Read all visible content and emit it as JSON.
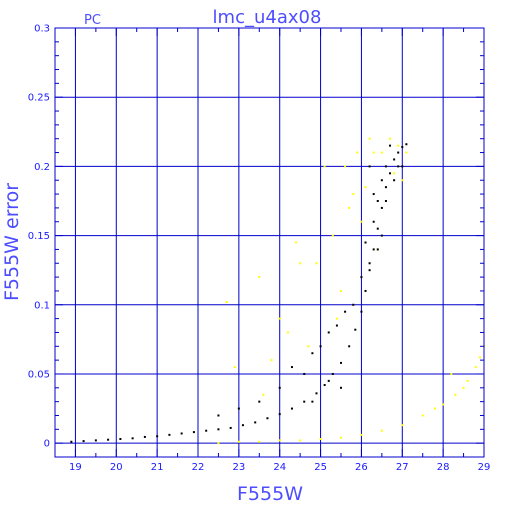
{
  "chart_data": {
    "type": "scatter",
    "title": "lmc_u4ax08",
    "tag": "PC",
    "xlabel": "F555W",
    "ylabel": "F555W error",
    "xlim": [
      18.5,
      29
    ],
    "ylim": [
      -0.01,
      0.3
    ],
    "xticks": [
      "19",
      "20",
      "21",
      "22",
      "23",
      "24",
      "25",
      "26",
      "27",
      "28",
      "29"
    ],
    "yticks": [
      "0",
      "0.05",
      "0.1",
      "0.15",
      "0.2",
      "0.25",
      "0.3"
    ],
    "grid": true,
    "colors": {
      "axes": "#0000cc",
      "text": "#4d4dff",
      "series_black": "#000000",
      "series_yellow": "#ffff00"
    },
    "series": [
      {
        "color": "#000000",
        "points": [
          [
            18.9,
            0.001
          ],
          [
            19.2,
            0.0015
          ],
          [
            19.5,
            0.002
          ],
          [
            19.8,
            0.0025
          ],
          [
            20.1,
            0.003
          ],
          [
            20.4,
            0.0035
          ],
          [
            20.7,
            0.0045
          ],
          [
            21.0,
            0.005
          ],
          [
            21.3,
            0.006
          ],
          [
            21.6,
            0.007
          ],
          [
            21.9,
            0.008
          ],
          [
            22.2,
            0.009
          ],
          [
            22.5,
            0.01
          ],
          [
            22.8,
            0.011
          ],
          [
            23.1,
            0.013
          ],
          [
            23.4,
            0.015
          ],
          [
            23.7,
            0.018
          ],
          [
            24.0,
            0.021
          ],
          [
            24.3,
            0.025
          ],
          [
            24.6,
            0.03
          ],
          [
            24.9,
            0.036
          ],
          [
            25.1,
            0.042
          ],
          [
            25.3,
            0.05
          ],
          [
            25.5,
            0.058
          ],
          [
            25.7,
            0.07
          ],
          [
            25.85,
            0.082
          ],
          [
            26.0,
            0.095
          ],
          [
            26.1,
            0.11
          ],
          [
            26.2,
            0.125
          ],
          [
            26.3,
            0.14
          ],
          [
            26.4,
            0.155
          ],
          [
            26.5,
            0.17
          ],
          [
            26.6,
            0.185
          ],
          [
            26.7,
            0.195
          ],
          [
            26.8,
            0.205
          ],
          [
            26.9,
            0.21
          ],
          [
            27.0,
            0.214
          ],
          [
            27.1,
            0.216
          ],
          [
            22.5,
            0.02
          ],
          [
            23.0,
            0.025
          ],
          [
            23.5,
            0.03
          ],
          [
            24.0,
            0.04
          ],
          [
            24.3,
            0.055
          ],
          [
            24.6,
            0.05
          ],
          [
            24.8,
            0.065
          ],
          [
            25.0,
            0.07
          ],
          [
            25.2,
            0.08
          ],
          [
            25.4,
            0.085
          ],
          [
            25.6,
            0.095
          ],
          [
            25.8,
            0.1
          ],
          [
            26.0,
            0.12
          ],
          [
            26.2,
            0.13
          ],
          [
            26.3,
            0.16
          ],
          [
            26.4,
            0.175
          ],
          [
            26.5,
            0.19
          ],
          [
            26.6,
            0.2
          ],
          [
            26.8,
            0.19
          ],
          [
            26.9,
            0.2
          ],
          [
            27.0,
            0.2
          ],
          [
            26.7,
            0.215
          ],
          [
            26.6,
            0.175
          ],
          [
            26.5,
            0.15
          ],
          [
            26.4,
            0.14
          ],
          [
            26.3,
            0.18
          ],
          [
            26.2,
            0.2
          ],
          [
            24.8,
            0.03
          ],
          [
            25.2,
            0.045
          ],
          [
            25.5,
            0.04
          ],
          [
            26.1,
            0.145
          ]
        ]
      },
      {
        "color": "#ffff00",
        "points": [
          [
            22.5,
            0.0
          ],
          [
            23.0,
            0.001
          ],
          [
            23.5,
            0.001
          ],
          [
            24.0,
            0.002
          ],
          [
            24.5,
            0.002
          ],
          [
            25.0,
            0.003
          ],
          [
            25.5,
            0.004
          ],
          [
            26.0,
            0.006
          ],
          [
            26.5,
            0.009
          ],
          [
            27.0,
            0.013
          ],
          [
            27.5,
            0.02
          ],
          [
            28.0,
            0.028
          ],
          [
            28.3,
            0.035
          ],
          [
            28.6,
            0.045
          ],
          [
            28.8,
            0.055
          ],
          [
            29.0,
            0.07
          ],
          [
            28.5,
            0.04
          ],
          [
            27.8,
            0.025
          ],
          [
            28.9,
            0.062
          ],
          [
            28.2,
            0.05
          ],
          [
            22.7,
            0.102
          ],
          [
            23.5,
            0.12
          ],
          [
            23.8,
            0.06
          ],
          [
            24.2,
            0.08
          ],
          [
            24.4,
            0.145
          ],
          [
            24.7,
            0.07
          ],
          [
            24.9,
            0.13
          ],
          [
            25.1,
            0.2
          ],
          [
            25.3,
            0.15
          ],
          [
            25.4,
            0.09
          ],
          [
            25.6,
            0.2
          ],
          [
            25.8,
            0.18
          ],
          [
            25.9,
            0.21
          ],
          [
            26.1,
            0.185
          ],
          [
            26.2,
            0.22
          ],
          [
            26.5,
            0.21
          ],
          [
            26.8,
            0.195
          ],
          [
            27.1,
            0.21
          ],
          [
            26.4,
            0.14
          ],
          [
            26.0,
            0.16
          ],
          [
            25.5,
            0.11
          ],
          [
            24.0,
            0.09
          ],
          [
            22.9,
            0.055
          ],
          [
            23.6,
            0.035
          ],
          [
            26.7,
            0.22
          ],
          [
            26.9,
            0.215
          ],
          [
            27.0,
            0.19
          ],
          [
            25.7,
            0.17
          ],
          [
            24.5,
            0.13
          ],
          [
            26.3,
            0.21
          ]
        ]
      }
    ]
  }
}
